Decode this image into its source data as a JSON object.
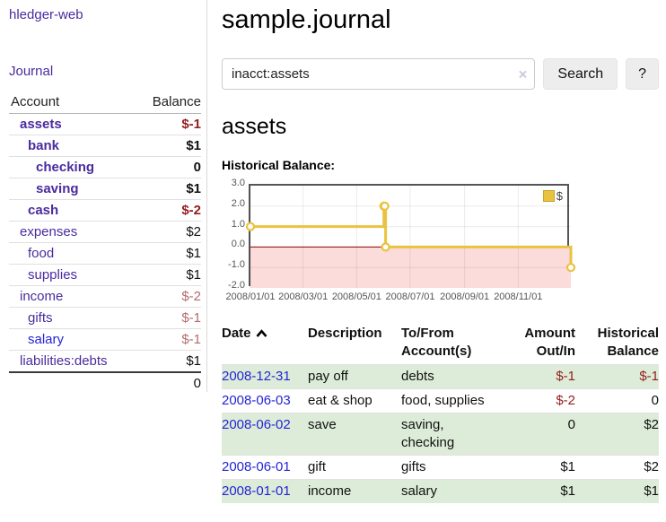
{
  "sidebar": {
    "brand": "hledger-web",
    "journal_label": "Journal",
    "accounts": {
      "header_account": "Account",
      "header_balance": "Balance",
      "rows": [
        {
          "name": "assets",
          "balance": "$-1",
          "depth": 1,
          "bold": true
        },
        {
          "name": "bank",
          "balance": "$1",
          "depth": 2,
          "bold": true
        },
        {
          "name": "checking",
          "balance": "0",
          "depth": 3,
          "bold": true
        },
        {
          "name": "saving",
          "balance": "$1",
          "depth": 3,
          "bold": true
        },
        {
          "name": "cash",
          "balance": "$-2",
          "depth": 2,
          "bold": true
        },
        {
          "name": "expenses",
          "balance": "$2",
          "depth": 1,
          "bold": false
        },
        {
          "name": "food",
          "balance": "$1",
          "depth": 2,
          "bold": false
        },
        {
          "name": "supplies",
          "balance": "$1",
          "depth": 2,
          "bold": false
        },
        {
          "name": "income",
          "balance": "$-2",
          "depth": 1,
          "bold": false
        },
        {
          "name": "gifts",
          "balance": "$-1",
          "depth": 2,
          "bold": false
        },
        {
          "name": "salary",
          "balance": "$-1",
          "depth": 2,
          "bold": false,
          "link_color": "blue"
        },
        {
          "name": "liabilities:debts",
          "balance": "$1",
          "depth": 1,
          "bold": false
        }
      ],
      "total": "0"
    }
  },
  "main": {
    "title": "sample.journal",
    "search": {
      "value": "inacct:assets",
      "clear_icon": "×",
      "button_label": "Search",
      "help_label": "?"
    },
    "account_heading": "assets",
    "chart_heading": "Historical Balance:",
    "register": {
      "headers": {
        "date": "Date",
        "description": "Description",
        "accounts": "To/From\nAccount(s)",
        "amount": "Amount\nOut/In",
        "balance": "Historical\nBalance"
      },
      "rows": [
        {
          "date": "2008-12-31",
          "description": "pay off",
          "accounts": "debts",
          "amount": "$-1",
          "balance": "$-1"
        },
        {
          "date": "2008-06-03",
          "description": "eat & shop",
          "accounts": "food, supplies",
          "amount": "$-2",
          "balance": "0"
        },
        {
          "date": "2008-06-02",
          "description": "save",
          "accounts": "saving, checking",
          "amount": "0",
          "balance": "$2"
        },
        {
          "date": "2008-06-01",
          "description": "gift",
          "accounts": "gifts",
          "amount": "$1",
          "balance": "$2"
        },
        {
          "date": "2008-01-01",
          "description": "income",
          "accounts": "salary",
          "amount": "$1",
          "balance": "$1"
        }
      ]
    }
  },
  "chart_data": {
    "type": "line",
    "step": true,
    "title": "Historical Balance:",
    "legend": [
      {
        "name": "$",
        "color": "#e9c340"
      }
    ],
    "legend_position": "top-right",
    "x": [
      "2008-01-01",
      "2008-06-01",
      "2008-06-02",
      "2008-06-03",
      "2008-12-31"
    ],
    "values": [
      1,
      2,
      2,
      0,
      -1
    ],
    "x_ticks": [
      "2008/01/01",
      "2008/03/01",
      "2008/05/01",
      "2008/07/01",
      "2008/09/01",
      "2008/11/01"
    ],
    "y_ticks": [
      "3.0",
      "2.0",
      "1.0",
      "0.0",
      "-1.0",
      "-2.0"
    ],
    "ylim": [
      -2,
      3
    ],
    "x_range": [
      "2008-01-01",
      "2008-12-31"
    ],
    "grid": true,
    "colors": {
      "line": "#e9c340",
      "marker_fill": "#ffffff",
      "negative_region_fill": "#fcdbdb",
      "zero_line": "#8b0000",
      "border": "#545454"
    }
  }
}
